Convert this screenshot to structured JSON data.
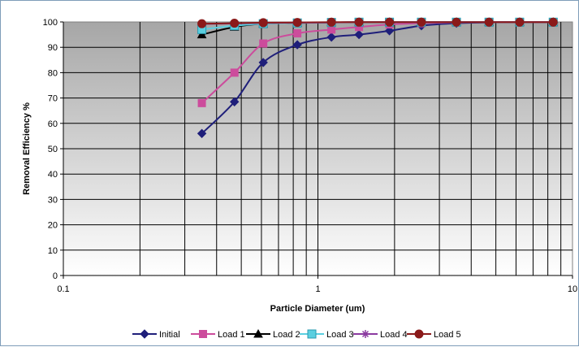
{
  "chart_data": {
    "type": "line",
    "xscale": "log",
    "xlim": [
      0.1,
      10
    ],
    "ylim": [
      0,
      100
    ],
    "xlabel": "Particle Diameter (um)",
    "ylabel": "Removal Efficiency %",
    "x_ticks": [
      "0.1",
      "1",
      "10"
    ],
    "y_ticks": [
      "0",
      "10",
      "20",
      "30",
      "40",
      "50",
      "60",
      "70",
      "80",
      "90",
      "100"
    ],
    "grid": true,
    "legend_position": "bottom",
    "x": [
      0.35,
      0.47,
      0.61,
      0.83,
      1.13,
      1.45,
      1.91,
      2.55,
      3.5,
      4.7,
      6.2,
      8.4
    ],
    "series": [
      {
        "name": "Initial",
        "color": "#1f1f7a",
        "marker": "diamond",
        "values": [
          56,
          68.5,
          84,
          91,
          94,
          95,
          96.5,
          98.5,
          99.5,
          99.8,
          99.9,
          99.9
        ]
      },
      {
        "name": "Load 1",
        "color": "#cc4c9c",
        "marker": "square",
        "values": [
          68,
          80,
          91.5,
          95.5,
          97,
          98,
          99,
          99.5,
          99.8,
          99.9,
          99.9,
          99.9
        ]
      },
      {
        "name": "Load 2",
        "color": "#000000",
        "marker": "triangle",
        "values": [
          95,
          98,
          99.3,
          99.6,
          99.8,
          99.9,
          99.9,
          99.9,
          99.9,
          99.9,
          99.9,
          99.9
        ]
      },
      {
        "name": "Load 3",
        "color": "#5bcfe0",
        "marker": "square-open",
        "values": [
          97,
          98.5,
          99.3,
          99.6,
          99.8,
          99.9,
          99.9,
          99.9,
          99.9,
          99.9,
          99.9,
          99.9
        ]
      },
      {
        "name": "Load 4",
        "color": "#8b3aa0",
        "marker": "star",
        "values": [
          99.2,
          99.4,
          99.6,
          99.7,
          99.8,
          99.9,
          99.9,
          99.9,
          99.9,
          99.9,
          99.9,
          99.9
        ]
      },
      {
        "name": "Load 5",
        "color": "#8b1a1a",
        "marker": "circle",
        "values": [
          99.3,
          99.5,
          99.7,
          99.8,
          99.9,
          99.9,
          99.9,
          99.9,
          99.9,
          99.9,
          99.9,
          99.9
        ]
      }
    ]
  }
}
